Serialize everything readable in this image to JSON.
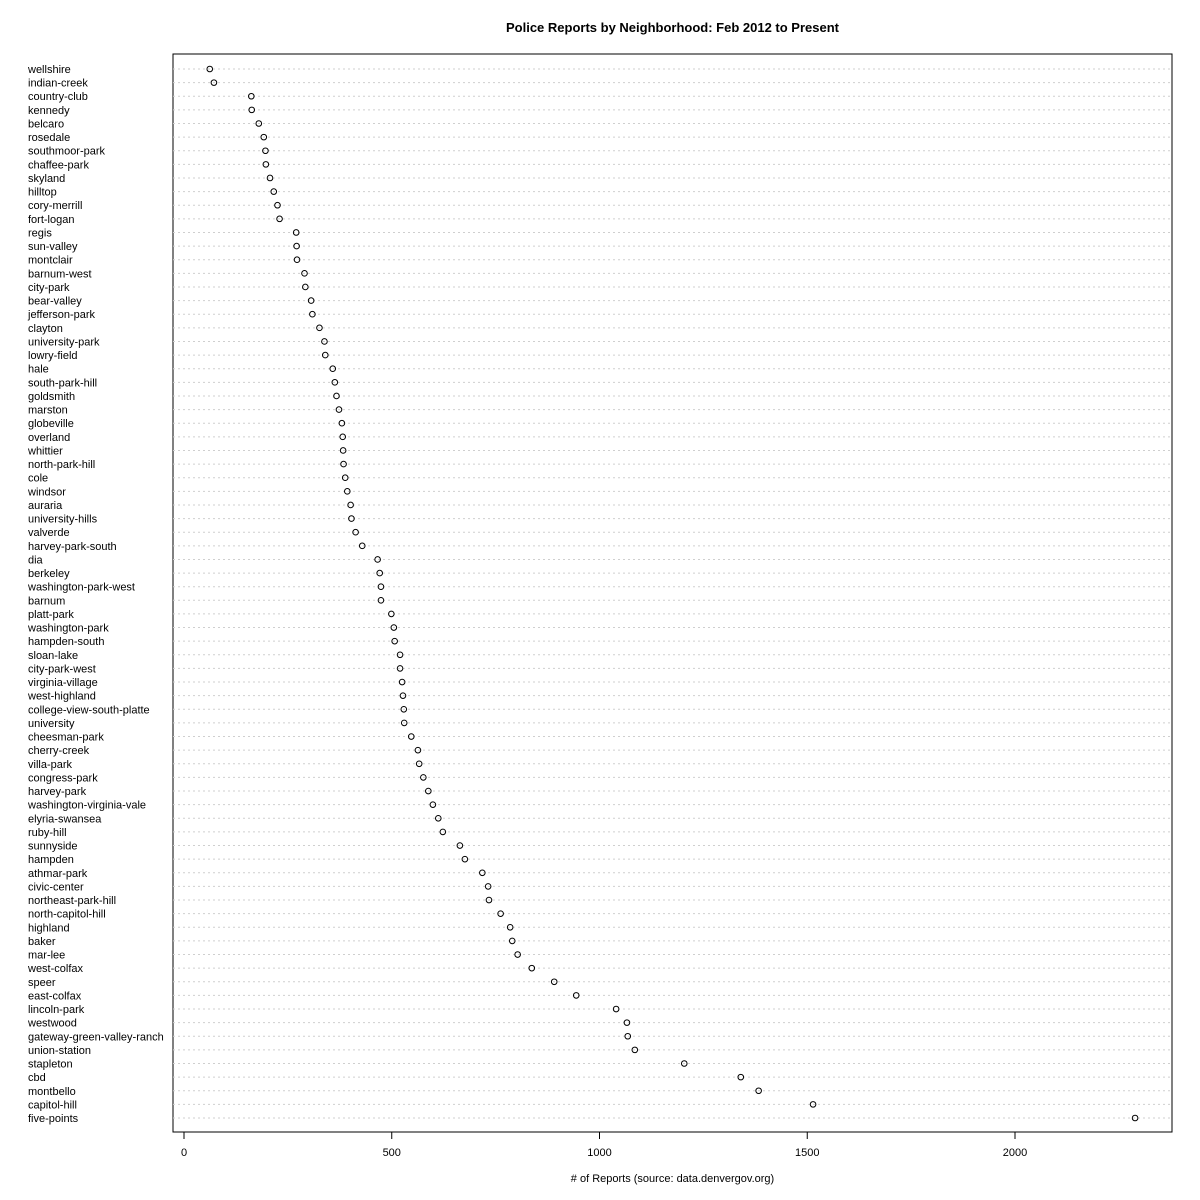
{
  "chart_data": {
    "type": "scatter",
    "title": "Police Reports by Neighborhood: Feb 2012 to Present",
    "xlabel": "# of Reports (source: data.denvergov.org)",
    "ylabel": "",
    "xlim": [
      -30,
      2360
    ],
    "xticks": [
      0,
      500,
      1000,
      1500,
      2000
    ],
    "grid": "dotted horizontal lines per category",
    "categories": [
      "wellshire",
      "indian-creek",
      "country-club",
      "kennedy",
      "belcaro",
      "rosedale",
      "southmoor-park",
      "chaffee-park",
      "skyland",
      "hilltop",
      "cory-merrill",
      "fort-logan",
      "regis",
      "sun-valley",
      "montclair",
      "barnum-west",
      "city-park",
      "bear-valley",
      "jefferson-park",
      "clayton",
      "university-park",
      "lowry-field",
      "hale",
      "south-park-hill",
      "goldsmith",
      "marston",
      "globeville",
      "overland",
      "whittier",
      "north-park-hill",
      "cole",
      "windsor",
      "auraria",
      "university-hills",
      "valverde",
      "harvey-park-south",
      "dia",
      "berkeley",
      "washington-park-west",
      "barnum",
      "platt-park",
      "washington-park",
      "hampden-south",
      "sloan-lake",
      "city-park-west",
      "virginia-village",
      "west-highland",
      "college-view-south-platte",
      "university",
      "cheesman-park",
      "cherry-creek",
      "villa-park",
      "congress-park",
      "harvey-park",
      "washington-virginia-vale",
      "elyria-swansea",
      "ruby-hill",
      "sunnyside",
      "hampden",
      "athmar-park",
      "civic-center",
      "northeast-park-hill",
      "north-capitol-hill",
      "highland",
      "baker",
      "mar-lee",
      "west-colfax",
      "speer",
      "east-colfax",
      "lincoln-park",
      "westwood",
      "gateway-green-valley-ranch",
      "union-station",
      "stapleton",
      "cbd",
      "montbello",
      "capitol-hill",
      "five-points"
    ],
    "values": [
      62,
      72,
      162,
      163,
      180,
      192,
      196,
      197,
      207,
      216,
      225,
      230,
      270,
      271,
      272,
      290,
      292,
      306,
      309,
      326,
      338,
      340,
      358,
      363,
      367,
      373,
      380,
      382,
      383,
      384,
      388,
      393,
      401,
      403,
      413,
      429,
      466,
      471,
      474,
      474,
      499,
      505,
      507,
      520,
      520,
      525,
      527,
      529,
      530,
      547,
      563,
      566,
      576,
      588,
      599,
      612,
      623,
      664,
      676,
      718,
      732,
      734,
      762,
      785,
      790,
      803,
      837,
      891,
      944,
      1040,
      1066,
      1068,
      1085,
      1204,
      1340,
      1383,
      1514,
      2289
    ]
  }
}
